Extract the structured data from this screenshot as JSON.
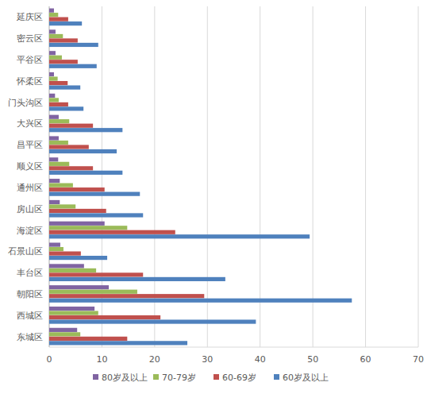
{
  "chart_data": {
    "type": "bar",
    "orientation": "horizontal",
    "categories": [
      "东城区",
      "西城区",
      "朝阳区",
      "丰台区",
      "石景山区",
      "海淀区",
      "房山区",
      "通州区",
      "顺义区",
      "昌平区",
      "大兴区",
      "门头沟区",
      "怀柔区",
      "平谷区",
      "密云区",
      "延庆区"
    ],
    "series": [
      {
        "name": "80岁及以上",
        "color": "#8064a2",
        "values": [
          5.3,
          8.6,
          11.3,
          6.6,
          2.1,
          10.5,
          2.0,
          2.0,
          1.7,
          1.8,
          1.8,
          1.1,
          0.9,
          1.2,
          1.2,
          0.9
        ]
      },
      {
        "name": "70-79岁",
        "color": "#9bbb59",
        "values": [
          5.9,
          9.3,
          16.7,
          8.9,
          2.7,
          14.8,
          5.0,
          4.5,
          3.8,
          3.6,
          3.8,
          1.8,
          1.6,
          2.4,
          2.6,
          1.7
        ]
      },
      {
        "name": "60-69岁",
        "color": "#c0504d",
        "values": [
          14.8,
          21.1,
          29.4,
          17.8,
          6.0,
          23.9,
          10.8,
          10.5,
          8.3,
          7.5,
          8.3,
          3.6,
          3.5,
          5.4,
          5.4,
          3.6
        ]
      },
      {
        "name": "60岁及以上",
        "color": "#4f81bd",
        "values": [
          26.2,
          39.2,
          57.4,
          33.4,
          11.0,
          49.4,
          17.8,
          17.2,
          13.9,
          12.8,
          13.9,
          6.5,
          5.9,
          9.0,
          9.3,
          6.2
        ]
      }
    ],
    "xlim": [
      0,
      70
    ],
    "xticks": [
      0,
      10,
      20,
      30,
      40,
      50,
      60,
      70
    ],
    "grid": true,
    "legend": "bottom"
  }
}
